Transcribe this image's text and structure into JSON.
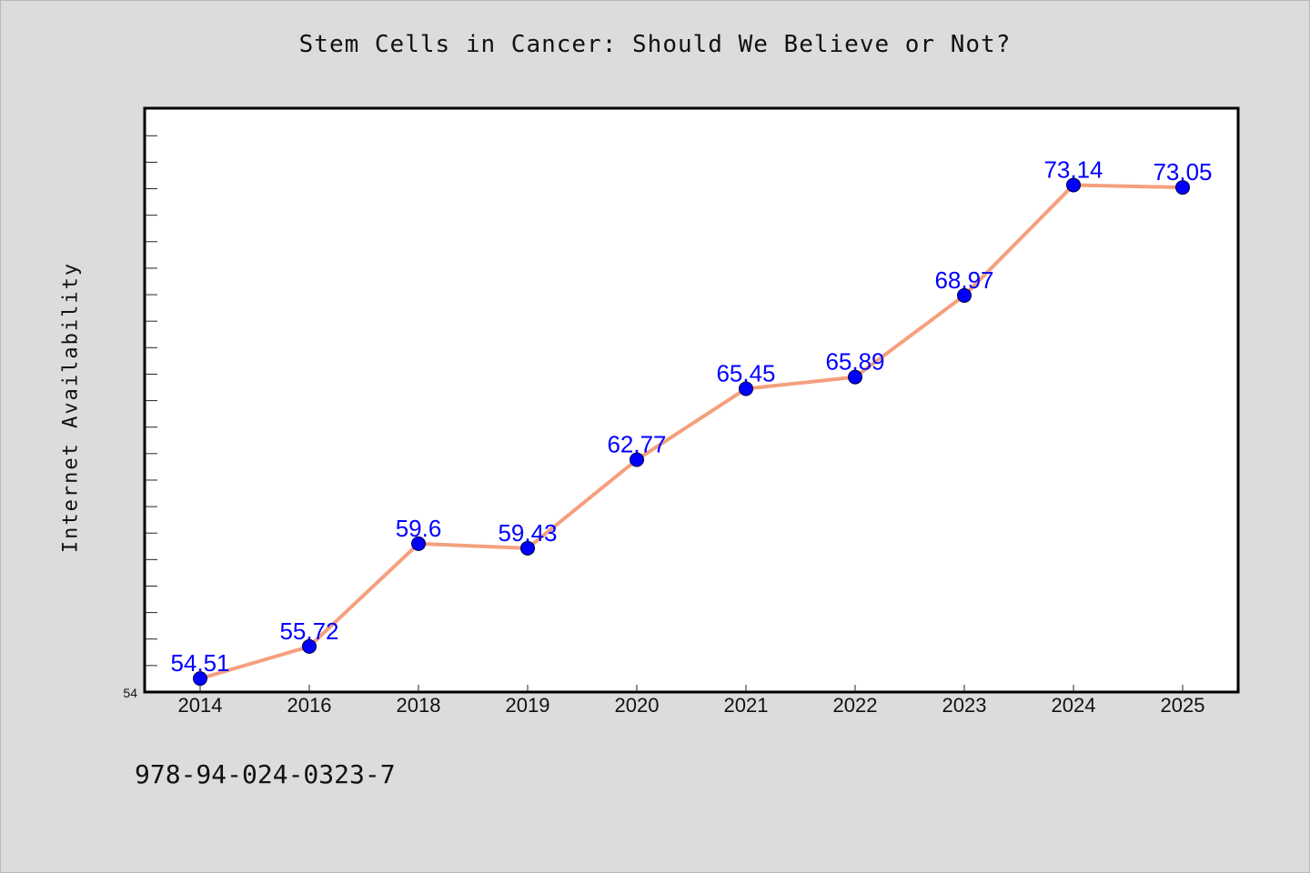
{
  "chart_data": {
    "type": "line",
    "title": "Stem Cells in Cancer: Should We Believe or Not?",
    "xlabel": "",
    "ylabel": "Internet Availability",
    "categories": [
      "2014",
      "2016",
      "2018",
      "2019",
      "2020",
      "2021",
      "2022",
      "2023",
      "2024",
      "2025"
    ],
    "series": [
      {
        "values": [
          54.51,
          55.72,
          59.6,
          59.43,
          62.77,
          65.45,
          65.89,
          68.97,
          73.14,
          73.05
        ],
        "data_labels": [
          "54.51",
          "55.72",
          "59.6",
          "59.43",
          "62.77",
          "65.45",
          "65.89",
          "68.97",
          "73.14",
          "73.05"
        ]
      }
    ],
    "ylim": [
      54,
      76
    ],
    "ytick_label": "54",
    "grid": false,
    "legend": "none",
    "colors": {
      "line": "#f4a07e",
      "marker": "#0000ff",
      "label": "#0000ff",
      "plot_background": "#ffffff",
      "figure_background": "#dcdcdc"
    }
  },
  "footer_text": "978-94-024-0323-7"
}
